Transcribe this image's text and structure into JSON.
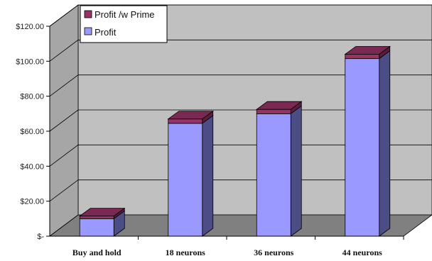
{
  "chart_data": {
    "type": "bar",
    "stacked": true,
    "three_d": true,
    "categories": [
      "Buy and hold",
      "18 neurons",
      "36 neurons",
      "44 neurons"
    ],
    "series": [
      {
        "name": "Profit",
        "values": [
          10,
          64.5,
          70,
          101.5
        ]
      },
      {
        "name": "Profit /w Prime",
        "values": [
          1.5,
          2.5,
          2.5,
          2.5
        ]
      }
    ],
    "yticks": [
      "$-",
      "$20.00",
      "$40.00",
      "$60.00",
      "$80.00",
      "$100.00",
      "$120.00"
    ],
    "ylim": [
      0,
      120
    ],
    "grid": true,
    "legend_position": "top-left",
    "colors": {
      "profit_front": "#9999ff",
      "profit_side": "#4d4d85",
      "prime_front": "#993366",
      "prime_side": "#5a1e3c",
      "prime_top": "#7a2a52",
      "wall": "#c0c0c0",
      "floor": "#808080"
    }
  }
}
